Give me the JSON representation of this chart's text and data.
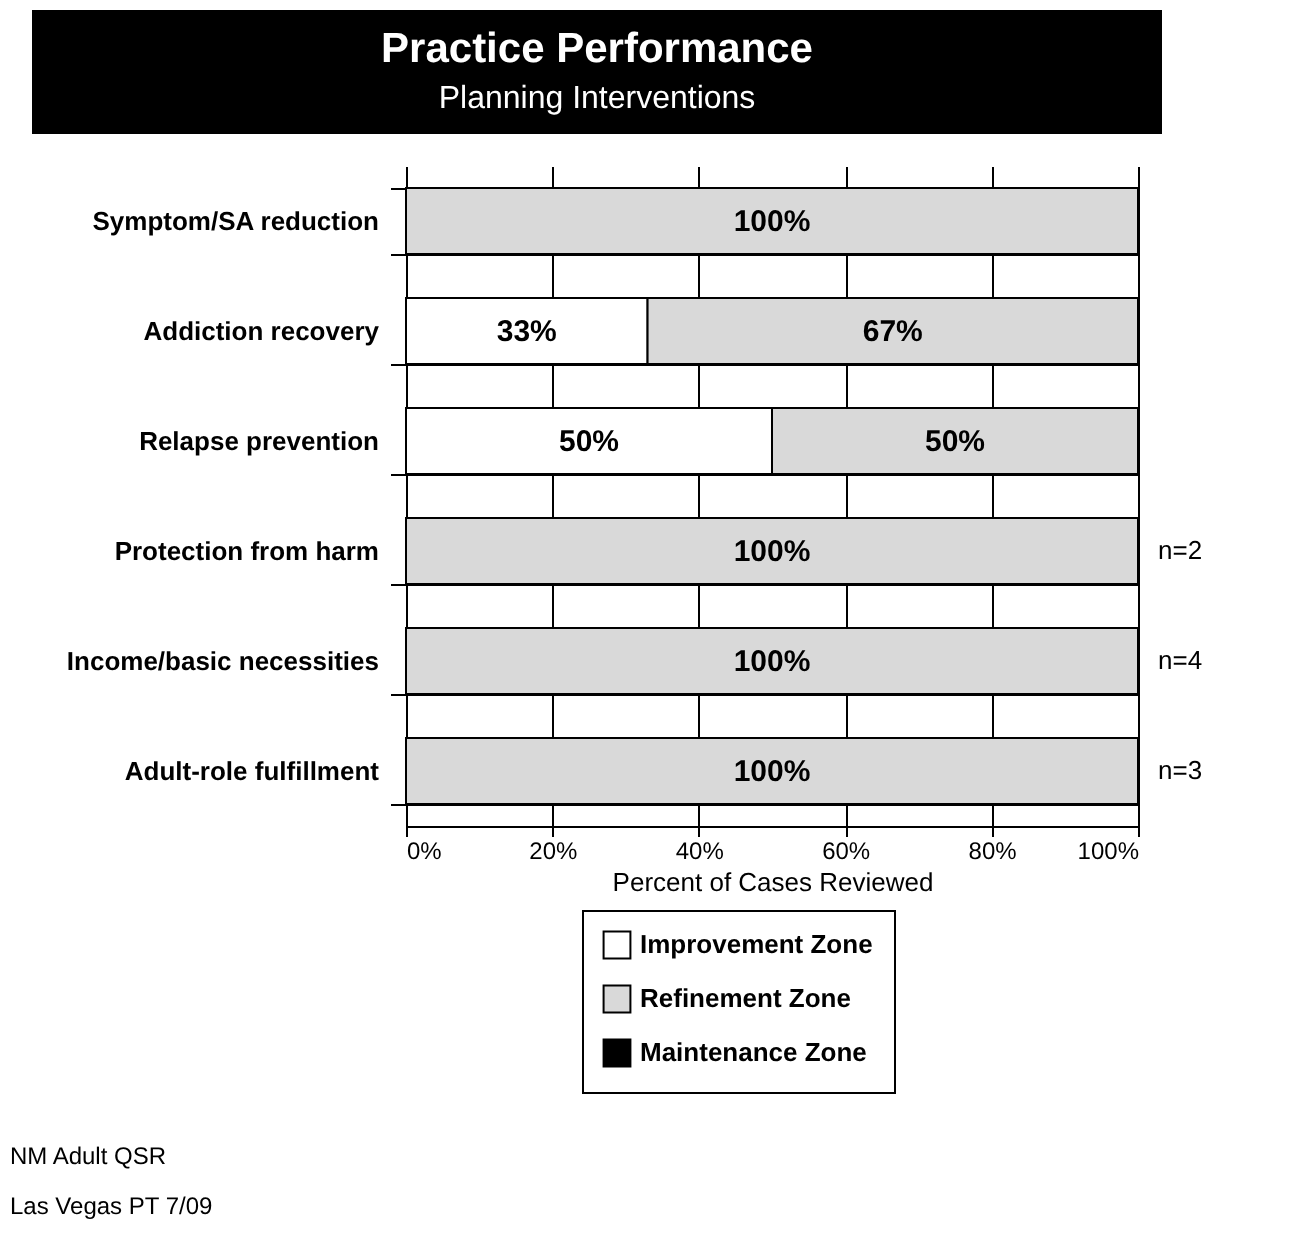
{
  "chart_data": {
    "type": "bar",
    "orientation": "horizontal",
    "stacked": true,
    "title": "Practice Performance",
    "subtitle": "Planning  Interventions",
    "xlabel": "Percent of Cases Reviewed",
    "categories": [
      "Symptom/SA reduction",
      "Addiction recovery",
      "Relapse prevention",
      "Protection from harm",
      "Income/basic necessities",
      "Adult-role fulfillment"
    ],
    "series": [
      {
        "name": "Improvement Zone",
        "color": "#ffffff",
        "values": [
          0,
          33,
          50,
          0,
          0,
          0
        ],
        "value_labels": [
          null,
          "33%",
          "50%",
          null,
          null,
          null
        ]
      },
      {
        "name": "Refinement Zone",
        "color": "#d9d9d9",
        "values": [
          100,
          67,
          50,
          100,
          100,
          100
        ],
        "value_labels": [
          "100%",
          "67%",
          "50%",
          "100%",
          "100%",
          "100%"
        ]
      },
      {
        "name": "Maintenance Zone",
        "color": "#000000",
        "values": [
          0,
          0,
          0,
          0,
          0,
          0
        ],
        "value_labels": [
          null,
          null,
          null,
          null,
          null,
          null
        ]
      }
    ],
    "xlim": [
      0,
      100
    ],
    "xticks": [
      {
        "value": 0,
        "label": "0%"
      },
      {
        "value": 20,
        "label": "20%"
      },
      {
        "value": 40,
        "label": "40%"
      },
      {
        "value": 60,
        "label": "60%"
      },
      {
        "value": 80,
        "label": "80%"
      },
      {
        "value": 100,
        "label": "100%"
      }
    ],
    "grid": true,
    "legend": "bottom",
    "annotations": [
      "n=2",
      "n=4",
      "n=3",
      "NM Adult QSR",
      "Las Vegas PT 7/09"
    ]
  }
}
